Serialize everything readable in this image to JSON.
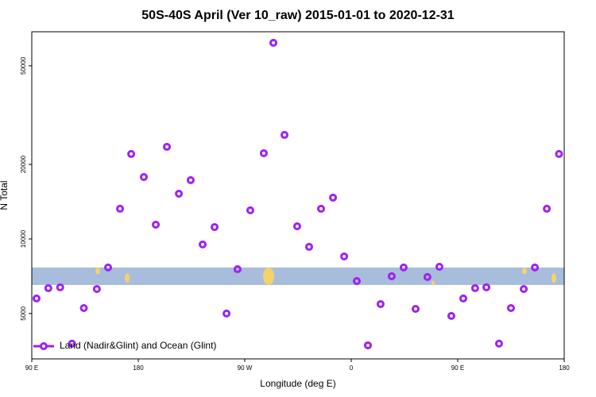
{
  "chart_data": {
    "type": "scatter",
    "title": "50S-40S April (Ver 10_raw)   2015-01-01 to 2020-12-31",
    "x_label": "Longitude (deg E)",
    "y_label": "N Total",
    "xlim": [
      90,
      540
    ],
    "xticks": [
      {
        "value": 90,
        "label": "90 E"
      },
      180,
      {
        "value": 270,
        "label": "90 W"
      },
      {
        "value": 360,
        "label": "0"
      },
      {
        "value": 450,
        "label": "90 E"
      },
      {
        "value": 540,
        "label": "180"
      }
    ],
    "ylim": [
      3280,
      68600
    ],
    "log_y": true,
    "yticks": [
      5000,
      10000,
      20000,
      50000
    ],
    "band": [
      6520,
      7670
    ],
    "band_color": "#a8bcdc",
    "legend": "bottom-left",
    "series": [
      {
        "name": "Land (Nadir&Glint) and Ocean (Glint)",
        "color": "#a020f0",
        "x": [
          94,
          104,
          114,
          124,
          134,
          145,
          154.5,
          164.6,
          174,
          184.7,
          194.8,
          204.2,
          214.3,
          224.3,
          234.4,
          244.5,
          254.6,
          263.9,
          274.7,
          286.1,
          294.2,
          303.6,
          314.3,
          324.4,
          334.5,
          344.6,
          354,
          364.7,
          374.1,
          384.8,
          394.2,
          404.3,
          414.4,
          424.4,
          434.5,
          444.6,
          454.7,
          464.7,
          474.2,
          484.9,
          495,
          505.8,
          515.2,
          525.3,
          535.6
        ],
        "values": [
          5750,
          6330,
          6380,
          3780,
          5260,
          6280,
          7670,
          13240,
          22030,
          17780,
          11420,
          23540,
          15230,
          17270,
          9500,
          11170,
          5000,
          7550,
          13050,
          22190,
          61900,
          26300,
          11250,
          9290,
          13240,
          14680,
          8500,
          6760,
          3720,
          5460,
          7070,
          7670,
          5220,
          7020,
          7720,
          4890,
          5750,
          6330,
          6380,
          3780,
          5260,
          6280,
          7670,
          13240,
          22030
        ]
      }
    ]
  }
}
